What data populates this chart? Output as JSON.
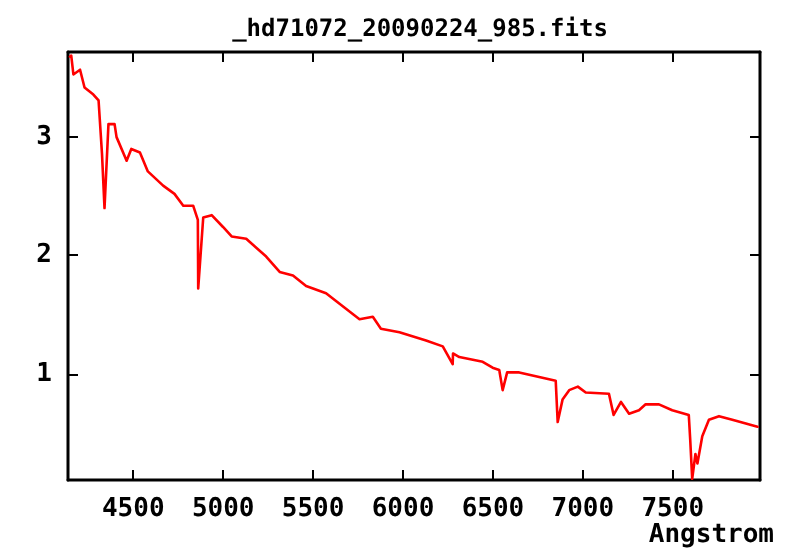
{
  "chart_data": {
    "type": "line",
    "title": "_hd71072_20090224_985.fits",
    "xlabel": "Angstrom",
    "xlim": [
      4137,
      7985
    ],
    "ylim": [
      0.1,
      3.72
    ],
    "xticks": [
      4500,
      5000,
      5500,
      6000,
      6500,
      7000,
      7500
    ],
    "yticks": [
      1,
      2,
      3
    ],
    "grid": false,
    "marker": "none",
    "line_style": "solid",
    "series": [
      {
        "color": "#ff0000",
        "x": [
          4148,
          4155,
          4167,
          4204,
          4229,
          4278,
          4307,
          4326,
          4340,
          4362,
          4396,
          4407,
          4463,
          4489,
          4537,
          4581,
          4666,
          4729,
          4778,
          4833,
          4859,
          4861,
          4889,
          4936,
          4999,
          5047,
          5128,
          5239,
          5314,
          5388,
          5461,
          5572,
          5647,
          5758,
          5832,
          5877,
          5980,
          6128,
          6221,
          6276,
          6278,
          6313,
          6443,
          6498,
          6535,
          6554,
          6579,
          6646,
          6849,
          6860,
          6887,
          6924,
          6972,
          7016,
          7145,
          7171,
          7212,
          7257,
          7312,
          7349,
          7423,
          7497,
          7589,
          7597,
          7608,
          7626,
          7637,
          7664,
          7701,
          7757,
          7831,
          7971
        ],
        "values": [
          3.68,
          3.69,
          3.53,
          3.57,
          3.42,
          3.36,
          3.31,
          2.86,
          2.4,
          3.11,
          3.11,
          3.0,
          2.8,
          2.9,
          2.87,
          2.71,
          2.59,
          2.52,
          2.42,
          2.42,
          2.3,
          1.72,
          2.32,
          2.34,
          2.24,
          2.16,
          2.14,
          1.99,
          1.86,
          1.83,
          1.74,
          1.68,
          1.59,
          1.46,
          1.48,
          1.38,
          1.35,
          1.28,
          1.23,
          1.08,
          1.17,
          1.14,
          1.1,
          1.05,
          1.03,
          0.86,
          1.01,
          1.01,
          0.94,
          0.59,
          0.78,
          0.86,
          0.89,
          0.84,
          0.83,
          0.65,
          0.76,
          0.66,
          0.69,
          0.74,
          0.74,
          0.69,
          0.65,
          0.44,
          0.11,
          0.32,
          0.24,
          0.47,
          0.61,
          0.64,
          0.61,
          0.55
        ]
      }
    ]
  }
}
